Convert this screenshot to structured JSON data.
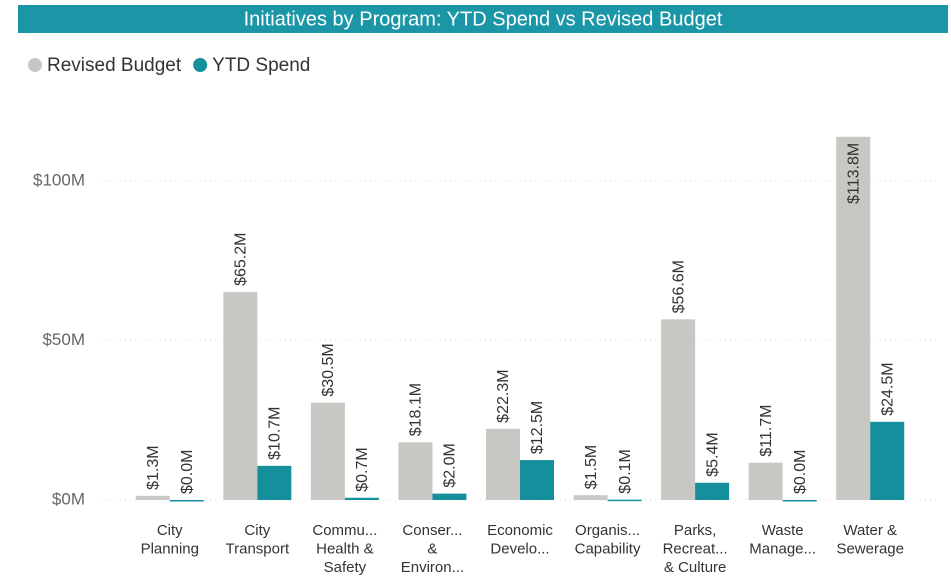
{
  "chart_data": {
    "type": "bar",
    "title": "Initiatives by Program: YTD Spend vs Revised Budget",
    "categories": [
      [
        "City",
        "Planning"
      ],
      [
        "City",
        "Transport"
      ],
      [
        "Commu...",
        "Health &",
        "Safety"
      ],
      [
        "Conser...",
        "&",
        "Environ..."
      ],
      [
        "Economic",
        "Develo..."
      ],
      [
        "Organis...",
        "Capability"
      ],
      [
        "Parks,",
        "Recreat...",
        "& Culture"
      ],
      [
        "Waste",
        "Manage..."
      ],
      [
        "Water &",
        "Sewerage"
      ]
    ],
    "series": [
      {
        "name": "Revised Budget",
        "color": "#c9c7c4",
        "values": [
          1300000,
          65200000,
          30500000,
          18100000,
          22300000,
          1500000,
          56600000,
          11700000,
          113800000
        ],
        "value_labels": [
          "$1.3M",
          "$65.2M",
          "$30.5M",
          "$18.1M",
          "$22.3M",
          "$1.5M",
          "$56.6M",
          "$11.7M",
          "$113.8M"
        ]
      },
      {
        "name": "YTD Spend",
        "color": "#168f9c",
        "values": [
          0,
          10700000,
          700000,
          2000000,
          12500000,
          100000,
          5400000,
          0,
          24500000
        ],
        "value_labels": [
          "$0.0M",
          "$10.7M",
          "$0.7M",
          "$2.0M",
          "$12.5M",
          "$0.1M",
          "$5.4M",
          "$0.0M",
          "$24.5M"
        ]
      }
    ],
    "ylim": [
      0,
      120000000
    ],
    "yticks": [
      {
        "value": 0,
        "label": "$0M"
      },
      {
        "value": 50000000,
        "label": "$50M"
      },
      {
        "value": 100000000,
        "label": "$100M"
      }
    ],
    "grid": true,
    "legend": "top-left"
  }
}
